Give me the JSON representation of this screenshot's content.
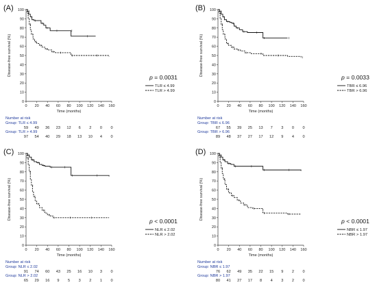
{
  "chart_data": [
    {
      "type": "line",
      "panel_label": "(A)",
      "ylabel": "Disease-free survival (%)",
      "xlabel": "Time (months)",
      "xlim": [
        0,
        160
      ],
      "ylim": [
        0,
        100
      ],
      "xticks": [
        0,
        20,
        40,
        60,
        80,
        100,
        120,
        140,
        160
      ],
      "yticks": [
        0,
        10,
        20,
        30,
        40,
        50,
        60,
        70,
        80,
        90,
        100
      ],
      "grid": false,
      "p_value": "= 0.0031",
      "series": [
        {
          "name": "TLR ≤ 4.99",
          "style": "solid",
          "points": [
            [
              0,
              100
            ],
            [
              3,
              98
            ],
            [
              5,
              95
            ],
            [
              8,
              92
            ],
            [
              11,
              89
            ],
            [
              15,
              88
            ],
            [
              26,
              88
            ],
            [
              28,
              85
            ],
            [
              33,
              83
            ],
            [
              37,
              80
            ],
            [
              45,
              77
            ],
            [
              55,
              77
            ],
            [
              62,
              77
            ],
            [
              83,
              77
            ],
            [
              84,
              71
            ],
            [
              112,
              71
            ],
            [
              130,
              71
            ]
          ]
        },
        {
          "name": "TLR > 4.99",
          "style": "dashed",
          "points": [
            [
              0,
              100
            ],
            [
              2,
              96
            ],
            [
              4,
              90
            ],
            [
              6,
              84
            ],
            [
              8,
              78
            ],
            [
              10,
              73
            ],
            [
              13,
              68
            ],
            [
              16,
              65
            ],
            [
              20,
              63
            ],
            [
              25,
              61
            ],
            [
              30,
              59
            ],
            [
              36,
              57
            ],
            [
              42,
              56
            ],
            [
              48,
              54
            ],
            [
              55,
              53
            ],
            [
              62,
              53
            ],
            [
              78,
              53
            ],
            [
              84,
              50
            ],
            [
              110,
              50
            ],
            [
              130,
              50
            ],
            [
              155,
              49
            ]
          ]
        }
      ],
      "risk_table": {
        "header": "Number at risk",
        "groups": [
          {
            "label": "Group: TLR ≤ 4.99",
            "values": [
              "59",
              "49",
              "36",
              "23",
              "12",
              "6",
              "2",
              "0",
              "0"
            ]
          },
          {
            "label": "Group: TLR > 4.99",
            "values": [
              "97",
              "54",
              "40",
              "29",
              "18",
              "13",
              "10",
              "4",
              "0"
            ]
          }
        ]
      }
    },
    {
      "type": "line",
      "panel_label": "(B)",
      "ylabel": "Disease-free survival (%)",
      "xlabel": "Time (months)",
      "xlim": [
        0,
        160
      ],
      "ylim": [
        0,
        100
      ],
      "xticks": [
        0,
        20,
        40,
        60,
        80,
        100,
        120,
        140,
        160
      ],
      "yticks": [
        0,
        10,
        20,
        30,
        40,
        50,
        60,
        70,
        80,
        90,
        100
      ],
      "grid": false,
      "p_value": "= 0.0033",
      "series": [
        {
          "name": "TBR ≤ 6.96",
          "style": "solid",
          "points": [
            [
              0,
              100
            ],
            [
              3,
              98
            ],
            [
              6,
              95
            ],
            [
              9,
              92
            ],
            [
              12,
              89
            ],
            [
              16,
              87
            ],
            [
              22,
              86
            ],
            [
              26,
              85
            ],
            [
              30,
              82
            ],
            [
              34,
              80
            ],
            [
              40,
              78
            ],
            [
              46,
              76
            ],
            [
              55,
              75
            ],
            [
              70,
              75
            ],
            [
              83,
              75
            ],
            [
              84,
              69
            ],
            [
              110,
              69
            ],
            [
              130,
              69
            ]
          ]
        },
        {
          "name": "TBR > 6.96",
          "style": "dashed",
          "points": [
            [
              0,
              100
            ],
            [
              2,
              96
            ],
            [
              4,
              90
            ],
            [
              6,
              84
            ],
            [
              8,
              78
            ],
            [
              10,
              73
            ],
            [
              13,
              68
            ],
            [
              16,
              63
            ],
            [
              20,
              61
            ],
            [
              25,
              59
            ],
            [
              30,
              57
            ],
            [
              36,
              56
            ],
            [
              42,
              55
            ],
            [
              50,
              53
            ],
            [
              62,
              52
            ],
            [
              78,
              52
            ],
            [
              84,
              50
            ],
            [
              110,
              50
            ],
            [
              130,
              49
            ],
            [
              155,
              48
            ]
          ]
        }
      ],
      "risk_table": {
        "header": "Number at risk",
        "groups": [
          {
            "label": "Group: TBR ≤ 6.96",
            "values": [
              "67",
              "55",
              "39",
              "25",
              "13",
              "7",
              "3",
              "0",
              "0"
            ]
          },
          {
            "label": "Group: TBR > 6.96",
            "values": [
              "89",
              "48",
              "37",
              "27",
              "17",
              "12",
              "9",
              "4",
              "0"
            ]
          }
        ]
      }
    },
    {
      "type": "line",
      "panel_label": "(C)",
      "ylabel": "Disease-free survival (%)",
      "xlabel": "Time (months)",
      "xlim": [
        0,
        160
      ],
      "ylim": [
        0,
        100
      ],
      "xticks": [
        0,
        20,
        40,
        60,
        80,
        100,
        120,
        140,
        160
      ],
      "yticks": [
        0,
        10,
        20,
        30,
        40,
        50,
        60,
        70,
        80,
        90,
        100
      ],
      "grid": false,
      "p_value": "< 0.0001",
      "series": [
        {
          "name": "NLR ≤ 2.02",
          "style": "solid",
          "points": [
            [
              0,
              100
            ],
            [
              3,
              98
            ],
            [
              6,
              96
            ],
            [
              10,
              93
            ],
            [
              15,
              91
            ],
            [
              20,
              90
            ],
            [
              25,
              88
            ],
            [
              30,
              87
            ],
            [
              35,
              86
            ],
            [
              45,
              85
            ],
            [
              50,
              85
            ],
            [
              70,
              85
            ],
            [
              83,
              85
            ],
            [
              84,
              76
            ],
            [
              110,
              76
            ],
            [
              130,
              76
            ],
            [
              155,
              75
            ]
          ]
        },
        {
          "name": "NLR > 2.02",
          "style": "dashed",
          "points": [
            [
              0,
              100
            ],
            [
              2,
              95
            ],
            [
              4,
              88
            ],
            [
              6,
              80
            ],
            [
              8,
              72
            ],
            [
              10,
              65
            ],
            [
              12,
              58
            ],
            [
              14,
              53
            ],
            [
              17,
              48
            ],
            [
              20,
              45
            ],
            [
              25,
              41
            ],
            [
              30,
              38
            ],
            [
              35,
              35
            ],
            [
              40,
              33
            ],
            [
              45,
              32
            ],
            [
              50,
              30
            ],
            [
              60,
              30
            ],
            [
              80,
              30
            ],
            [
              100,
              30
            ],
            [
              120,
              30
            ],
            [
              155,
              30
            ]
          ]
        }
      ],
      "risk_table": {
        "header": "Number at risk",
        "groups": [
          {
            "label": "Group: NLR ≤ 2.02",
            "values": [
              "91",
              "74",
              "60",
              "43",
              "25",
              "16",
              "10",
              "3",
              "0"
            ]
          },
          {
            "label": "Group: NLR > 2.02",
            "values": [
              "65",
              "29",
              "16",
              "9",
              "5",
              "3",
              "2",
              "1",
              "0"
            ]
          }
        ]
      }
    },
    {
      "type": "line",
      "panel_label": "(D)",
      "ylabel": "Disease-free survival (%)",
      "xlabel": "Time (months)",
      "xlim": [
        0,
        160
      ],
      "ylim": [
        0,
        100
      ],
      "xticks": [
        0,
        20,
        40,
        60,
        80,
        100,
        120,
        140,
        160
      ],
      "yticks": [
        0,
        10,
        20,
        30,
        40,
        50,
        60,
        70,
        80,
        90,
        100
      ],
      "grid": false,
      "p_value": "< 0.0001",
      "series": [
        {
          "name": "NBR ≤ 1.97",
          "style": "solid",
          "points": [
            [
              0,
              100
            ],
            [
              3,
              98
            ],
            [
              6,
              96
            ],
            [
              9,
              93
            ],
            [
              13,
              91
            ],
            [
              18,
              89
            ],
            [
              24,
              88
            ],
            [
              30,
              86
            ],
            [
              40,
              86
            ],
            [
              60,
              86
            ],
            [
              83,
              86
            ],
            [
              84,
              82
            ],
            [
              110,
              82
            ],
            [
              130,
              82
            ],
            [
              155,
              81
            ]
          ]
        },
        {
          "name": "NBR > 1.97",
          "style": "dashed",
          "points": [
            [
              0,
              100
            ],
            [
              2,
              96
            ],
            [
              4,
              90
            ],
            [
              6,
              84
            ],
            [
              8,
              78
            ],
            [
              10,
              72
            ],
            [
              13,
              66
            ],
            [
              16,
              61
            ],
            [
              20,
              57
            ],
            [
              25,
              54
            ],
            [
              30,
              52
            ],
            [
              36,
              49
            ],
            [
              42,
              46
            ],
            [
              48,
              44
            ],
            [
              55,
              41
            ],
            [
              65,
              40
            ],
            [
              80,
              40
            ],
            [
              84,
              35
            ],
            [
              110,
              35
            ],
            [
              130,
              34
            ],
            [
              155,
              34
            ]
          ]
        }
      ],
      "risk_table": {
        "header": "Number at risk",
        "groups": [
          {
            "label": "Group: NBR ≤ 1.97",
            "values": [
              "76",
              "62",
              "49",
              "35",
              "22",
              "15",
              "9",
              "2",
              "0"
            ]
          },
          {
            "label": "Group: NBR > 1.97",
            "values": [
              "80",
              "41",
              "27",
              "17",
              "8",
              "4",
              "3",
              "2",
              "0"
            ]
          }
        ]
      }
    }
  ]
}
